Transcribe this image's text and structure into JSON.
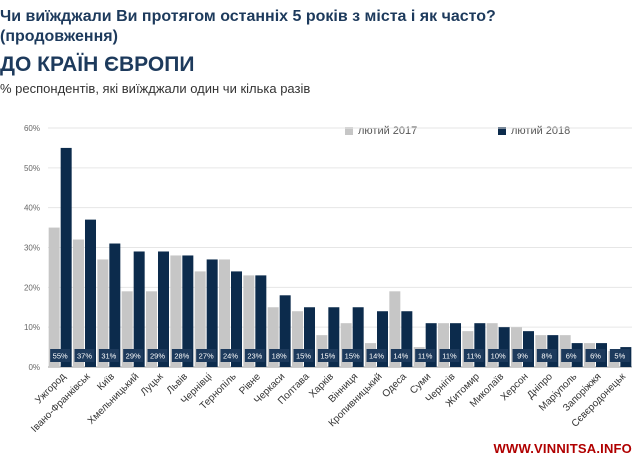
{
  "header": {
    "title_line1": "Чи виїжджали Ви протягом останніх 5 років з міста і як часто?",
    "title_line2": "(продовження)",
    "title_main": "ДО КРАЇН ЄВРОПИ",
    "subtitle": "% респондентів, які виїжджали один чи кілька разів"
  },
  "watermark": "WWW.VINNITSA.INFO",
  "colors": {
    "series2017": "#c6c6c6",
    "series2018": "#0c2b4c",
    "label_box": "#1d3a5c"
  },
  "chart_data": {
    "type": "bar",
    "categories": [
      "Ужгород",
      "Івано-Франківськ",
      "Київ",
      "Хмельницький",
      "Луцьк",
      "Львів",
      "Чернівці",
      "Тернопіль",
      "Рівне",
      "Черкаси",
      "Полтава",
      "Харків",
      "Вінниця",
      "Кропивницький",
      "Одеса",
      "Суми",
      "Чернігів",
      "Житомир",
      "Миколаїв",
      "Херсон",
      "Дніпро",
      "Маріуполь",
      "Запоріжжя",
      "Сєвєродонецьк"
    ],
    "series": [
      {
        "name": "лютий 2017",
        "values": [
          35,
          32,
          27,
          19,
          19,
          28,
          24,
          27,
          23,
          15,
          14,
          8,
          11,
          6,
          19,
          5,
          11,
          9,
          11,
          10,
          8,
          8,
          6,
          4
        ]
      },
      {
        "name": "лютий 2018",
        "values": [
          55,
          37,
          31,
          29,
          29,
          28,
          27,
          24,
          23,
          18,
          15,
          15,
          15,
          14,
          14,
          11,
          11,
          11,
          10,
          9,
          8,
          6,
          6,
          5
        ]
      }
    ],
    "data_labels": [
      "55%",
      "37%",
      "31%",
      "29%",
      "29%",
      "28%",
      "27%",
      "24%",
      "23%",
      "18%",
      "15%",
      "15%",
      "15%",
      "14%",
      "14%",
      "11%",
      "11%",
      "11%",
      "10%",
      "9%",
      "8%",
      "6%",
      "6%",
      "5%"
    ],
    "yticks": [
      "0%",
      "10%",
      "20%",
      "30%",
      "40%",
      "50%",
      "60%"
    ],
    "ylim": [
      0,
      60
    ],
    "grid": true,
    "legend": "top-right"
  }
}
